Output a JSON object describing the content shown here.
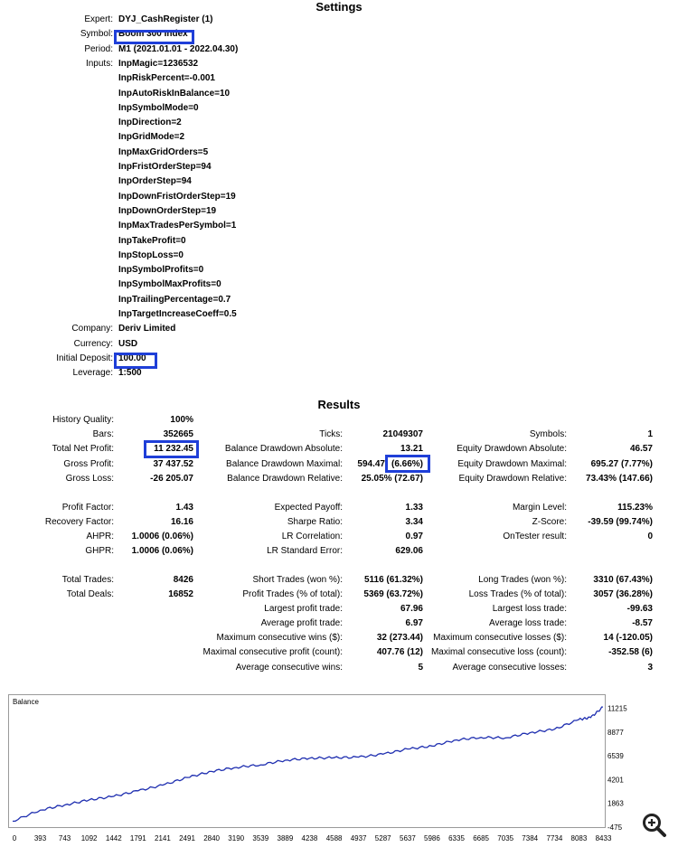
{
  "settings": {
    "title": "Settings",
    "rows": [
      {
        "label": "Expert:",
        "value": "DYJ_CashRegister (1)"
      },
      {
        "label": "Symbol:",
        "value": "Boom 300 Index"
      },
      {
        "label": "Period:",
        "value": "M1 (2021.01.01 - 2022.04.30)"
      },
      {
        "label": "Inputs:",
        "value": "InpMagic=1236532"
      },
      {
        "label": "",
        "value": "InpRiskPercent=-0.001"
      },
      {
        "label": "",
        "value": "InpAutoRiskInBalance=10"
      },
      {
        "label": "",
        "value": "InpSymbolMode=0"
      },
      {
        "label": "",
        "value": "InpDirection=2"
      },
      {
        "label": "",
        "value": "InpGridMode=2"
      },
      {
        "label": "",
        "value": "InpMaxGridOrders=5"
      },
      {
        "label": "",
        "value": "InpFristOrderStep=94"
      },
      {
        "label": "",
        "value": "InpOrderStep=94"
      },
      {
        "label": "",
        "value": "InpDownFristOrderStep=19"
      },
      {
        "label": "",
        "value": "InpDownOrderStep=19"
      },
      {
        "label": "",
        "value": "InpMaxTradesPerSymbol=1"
      },
      {
        "label": "",
        "value": "InpTakeProfit=0"
      },
      {
        "label": "",
        "value": "InpStopLoss=0"
      },
      {
        "label": "",
        "value": "InpSymbolProfits=0"
      },
      {
        "label": "",
        "value": "InpSymbolMaxProfits=0"
      },
      {
        "label": "",
        "value": "InpTrailingPercentage=0.7"
      },
      {
        "label": "",
        "value": "InpTargetIncreaseCoeff=0.5"
      },
      {
        "label": "Company:",
        "value": "Deriv Limited"
      },
      {
        "label": "Currency:",
        "value": "USD"
      },
      {
        "label": "Initial Deposit:",
        "value": "100.00"
      },
      {
        "label": "Leverage:",
        "value": "1:500"
      }
    ]
  },
  "results": {
    "title": "Results",
    "col1": [
      {
        "label": "History Quality:",
        "value": "100%"
      },
      {
        "label": "Bars:",
        "value": "352665"
      },
      {
        "label": "Total Net Profit:",
        "value": "11 232.45"
      },
      {
        "label": "Gross Profit:",
        "value": "37 437.52"
      },
      {
        "label": "Gross Loss:",
        "value": "-26 205.07"
      },
      {
        "label": "Profit Factor:",
        "value": "1.43"
      },
      {
        "label": "Recovery Factor:",
        "value": "16.16"
      },
      {
        "label": "AHPR:",
        "value": "1.0006 (0.06%)"
      },
      {
        "label": "GHPR:",
        "value": "1.0006 (0.06%)"
      },
      {
        "label": "Total Trades:",
        "value": "8426"
      },
      {
        "label": "Total Deals:",
        "value": "16852"
      }
    ],
    "col2": [
      {
        "label": "Ticks:",
        "value": "21049307"
      },
      {
        "label": "Balance Drawdown Absolute:",
        "value": "13.21"
      },
      {
        "label": "Balance Drawdown Maximal:",
        "value": "594.47",
        "value_b": "(6.66%)"
      },
      {
        "label": "Balance Drawdown Relative:",
        "value": "25.05% (72.67)"
      },
      {
        "label": "Expected Payoff:",
        "value": "1.33"
      },
      {
        "label": "Sharpe Ratio:",
        "value": "3.34"
      },
      {
        "label": "LR Correlation:",
        "value": "0.97"
      },
      {
        "label": "LR Standard Error:",
        "value": "629.06"
      },
      {
        "label": "Short Trades (won %):",
        "value": "5116 (61.32%)"
      },
      {
        "label": "Profit Trades (% of total):",
        "value": "5369 (63.72%)"
      },
      {
        "label": "Largest profit trade:",
        "value": "67.96"
      },
      {
        "label": "Average profit trade:",
        "value": "6.97"
      },
      {
        "label": "Maximum consecutive wins ($):",
        "value": "32 (273.44)"
      },
      {
        "label": "Maximal consecutive profit (count):",
        "value": "407.76 (12)"
      },
      {
        "label": "Average consecutive wins:",
        "value": "5"
      }
    ],
    "col3": [
      {
        "label": "Symbols:",
        "value": "1"
      },
      {
        "label": "Equity Drawdown Absolute:",
        "value": "46.57"
      },
      {
        "label": "Equity Drawdown Maximal:",
        "value": "695.27 (7.77%)"
      },
      {
        "label": "Equity Drawdown Relative:",
        "value": "73.43% (147.66)"
      },
      {
        "label": "Margin Level:",
        "value": "115.23%"
      },
      {
        "label": "Z-Score:",
        "value": "-39.59 (99.74%)"
      },
      {
        "label": "OnTester result:",
        "value": "0"
      },
      {
        "label": "Long Trades (won %):",
        "value": "3310 (67.43%)"
      },
      {
        "label": "Loss Trades (% of total):",
        "value": "3057 (36.28%)"
      },
      {
        "label": "Largest loss trade:",
        "value": "-99.63"
      },
      {
        "label": "Average loss trade:",
        "value": "-8.57"
      },
      {
        "label": "Maximum consecutive losses ($):",
        "value": "14 (-120.05)"
      },
      {
        "label": "Maximal consecutive loss (count):",
        "value": "-352.58 (6)"
      },
      {
        "label": "Average consecutive losses:",
        "value": "3"
      }
    ]
  },
  "chart_data": {
    "type": "line",
    "title": "Balance",
    "xlabel": "",
    "ylabel": "",
    "x_ticks": [
      0,
      393,
      743,
      1092,
      1442,
      1791,
      2141,
      2491,
      2840,
      3190,
      3539,
      3889,
      4238,
      4588,
      4937,
      5287,
      5637,
      5986,
      6335,
      6685,
      7035,
      7384,
      7734,
      8083,
      8433
    ],
    "y_ticks": [
      11215,
      8877,
      6539,
      4201,
      1863,
      -475
    ],
    "xlim": [
      0,
      8426
    ],
    "ylim": [
      -475,
      12500
    ],
    "series": [
      {
        "color": "#1f2fb0",
        "x": [
          0,
          393,
          743,
          1092,
          1442,
          1791,
          2141,
          2491,
          2840,
          3190,
          3539,
          3889,
          4238,
          4588,
          4937,
          5287,
          5637,
          5986,
          6335,
          6685,
          7035,
          7384,
          7734,
          8083,
          8250,
          8426
        ],
        "y": [
          100,
          1200,
          1700,
          2200,
          2550,
          3100,
          3650,
          4400,
          5000,
          5400,
          5650,
          6100,
          6300,
          6350,
          6400,
          6700,
          7200,
          7500,
          8100,
          8350,
          8300,
          8800,
          9150,
          10100,
          10300,
          11332
        ]
      }
    ]
  },
  "icons": {
    "zoom": "zoom-in-icon"
  },
  "colors": {
    "highlight": "#1f3fd8",
    "line": "#1f2fb0"
  }
}
